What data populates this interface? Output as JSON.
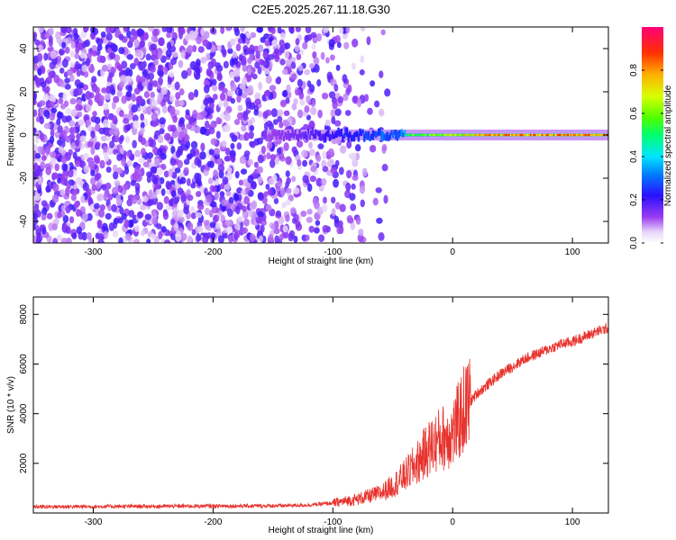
{
  "chart_data": [
    {
      "type": "heatmap",
      "title": "C2E5.2025.267.11.18.G30",
      "xlabel": "Height of straight line (km)",
      "ylabel": "Frequency (Hz)",
      "xlim": [
        -350,
        130
      ],
      "ylim": [
        -50,
        50
      ],
      "x_ticks": [
        -300,
        -200,
        -100,
        0,
        100
      ],
      "x_tick_labels": [
        "-300",
        "-200",
        "-100",
        "0",
        "100"
      ],
      "y_ticks": [
        -40,
        -20,
        0,
        20,
        40
      ],
      "y_tick_labels": [
        "-40",
        "-20",
        "0",
        "20",
        "40"
      ],
      "colorbar": {
        "label": "Normalized spectral amplitude",
        "range": [
          0,
          1
        ],
        "ticks": [
          0,
          0.2,
          0.4,
          0.6,
          0.8
        ],
        "tick_labels": [
          "0.0",
          "0.2",
          "0.4",
          "0.6",
          "0.8"
        ]
      },
      "features": [
        {
          "name": "noise-region",
          "x_range": [
            -350,
            -80
          ],
          "freq_range": [
            -50,
            50
          ],
          "amplitude": 0.15
        },
        {
          "name": "carrier-line",
          "x_range": [
            -150,
            130
          ],
          "freq_center": 0,
          "amplitude_range": [
            0.2,
            0.95
          ]
        }
      ]
    },
    {
      "type": "line",
      "xlabel": "Height of straight line (km)",
      "ylabel": "SNR (10 * v/v)",
      "xlim": [
        -350,
        130
      ],
      "ylim": [
        0,
        8700
      ],
      "x_ticks": [
        -300,
        -200,
        -100,
        0,
        100
      ],
      "x_tick_labels": [
        "-300",
        "-200",
        "-100",
        "0",
        "100"
      ],
      "y_ticks": [
        2000,
        4000,
        6000,
        8000
      ],
      "y_tick_labels": [
        "2000",
        "4000",
        "6000",
        "8000"
      ],
      "series": [
        {
          "name": "SNR",
          "color": "#e8322c",
          "x": [
            -350,
            -300,
            -250,
            -200,
            -150,
            -120,
            -100,
            -80,
            -60,
            -50,
            -40,
            -30,
            -20,
            -10,
            0,
            10,
            20,
            30,
            40,
            50,
            60,
            70,
            80,
            90,
            100,
            110,
            120,
            130
          ],
          "y": [
            250,
            260,
            270,
            280,
            290,
            320,
            400,
            550,
            800,
            1100,
            1500,
            2000,
            2600,
            3000,
            3200,
            4200,
            4800,
            5200,
            5600,
            5900,
            6200,
            6400,
            6600,
            6800,
            6900,
            7100,
            7300,
            7450
          ]
        }
      ]
    }
  ]
}
